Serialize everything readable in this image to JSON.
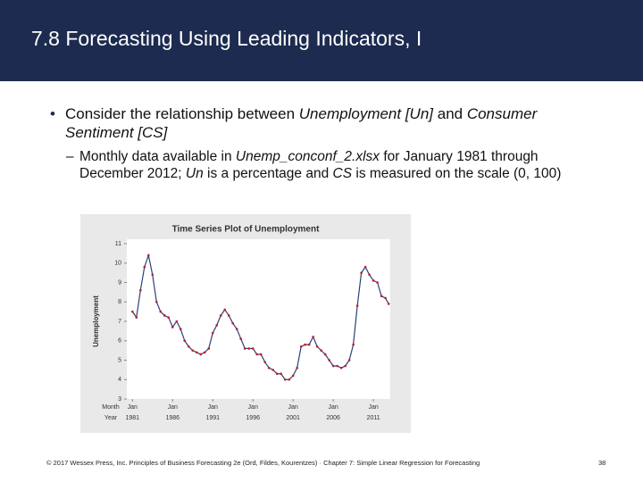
{
  "header": {
    "title": "7.8 Forecasting Using Leading Indicators, I"
  },
  "bullets": [
    {
      "parts": [
        "Consider the relationship between ",
        "Unemployment [Un]",
        " and ",
        "Consumer Sentiment [CS]"
      ]
    },
    {
      "parts": [
        "Monthly data available in ",
        "Unemp_conconf_2.xlsx",
        " for January 1981 through December 2012; ",
        "Un",
        " is a percentage and ",
        "CS",
        " is measured on the scale (0, 100)"
      ]
    }
  ],
  "chart": {
    "type": "line",
    "title": "Time Series Plot of Unemployment",
    "y_label": "Unemployment",
    "x_row_labels": [
      "Month",
      "Year"
    ],
    "x_tick_month": "Jan",
    "x": [
      1981.0,
      1981.5,
      1982.0,
      1982.5,
      1983.0,
      1983.5,
      1984.0,
      1984.5,
      1985.0,
      1985.5,
      1986.0,
      1986.5,
      1987.0,
      1987.5,
      1988.0,
      1988.5,
      1989.0,
      1989.5,
      1990.0,
      1990.5,
      1991.0,
      1991.5,
      1992.0,
      1992.5,
      1993.0,
      1993.5,
      1994.0,
      1994.5,
      1995.0,
      1995.5,
      1996.0,
      1996.5,
      1997.0,
      1997.5,
      1998.0,
      1998.5,
      1999.0,
      1999.5,
      2000.0,
      2000.5,
      2001.0,
      2001.5,
      2002.0,
      2002.5,
      2003.0,
      2003.5,
      2004.0,
      2004.5,
      2005.0,
      2005.5,
      2006.0,
      2006.5,
      2007.0,
      2007.5,
      2008.0,
      2008.5,
      2009.0,
      2009.5,
      2010.0,
      2010.5,
      2011.0,
      2011.5,
      2012.0,
      2012.5,
      2012.9
    ],
    "values": [
      7.5,
      7.2,
      8.6,
      9.8,
      10.4,
      9.4,
      8.0,
      7.5,
      7.3,
      7.2,
      6.7,
      7.0,
      6.6,
      6.0,
      5.7,
      5.5,
      5.4,
      5.3,
      5.4,
      5.6,
      6.4,
      6.8,
      7.3,
      7.6,
      7.3,
      6.9,
      6.6,
      6.1,
      5.6,
      5.6,
      5.6,
      5.3,
      5.3,
      4.9,
      4.6,
      4.5,
      4.3,
      4.3,
      4.0,
      4.0,
      4.2,
      4.6,
      5.7,
      5.8,
      5.8,
      6.2,
      5.7,
      5.5,
      5.3,
      5.0,
      4.7,
      4.7,
      4.6,
      4.7,
      5.0,
      5.8,
      7.8,
      9.5,
      9.8,
      9.4,
      9.1,
      9.0,
      8.3,
      8.2,
      7.9
    ],
    "line_color": "#2e3f7a",
    "point_color": "#b8202a",
    "xlim": [
      1980.3,
      2013.1
    ],
    "xticks": [
      1981,
      1986,
      1991,
      1996,
      2001,
      2006,
      2011
    ],
    "ylim": [
      3,
      11
    ],
    "yticks": [
      3,
      4,
      5,
      6,
      7,
      8,
      9,
      10,
      11
    ]
  },
  "footer": {
    "text": "© 2017 Wessex Press, Inc. Principles of Business Forecasting 2e (Ord, Fildes, Kourentzes) · Chapter 7: Simple Linear Regression for Forecasting",
    "page": "38"
  }
}
